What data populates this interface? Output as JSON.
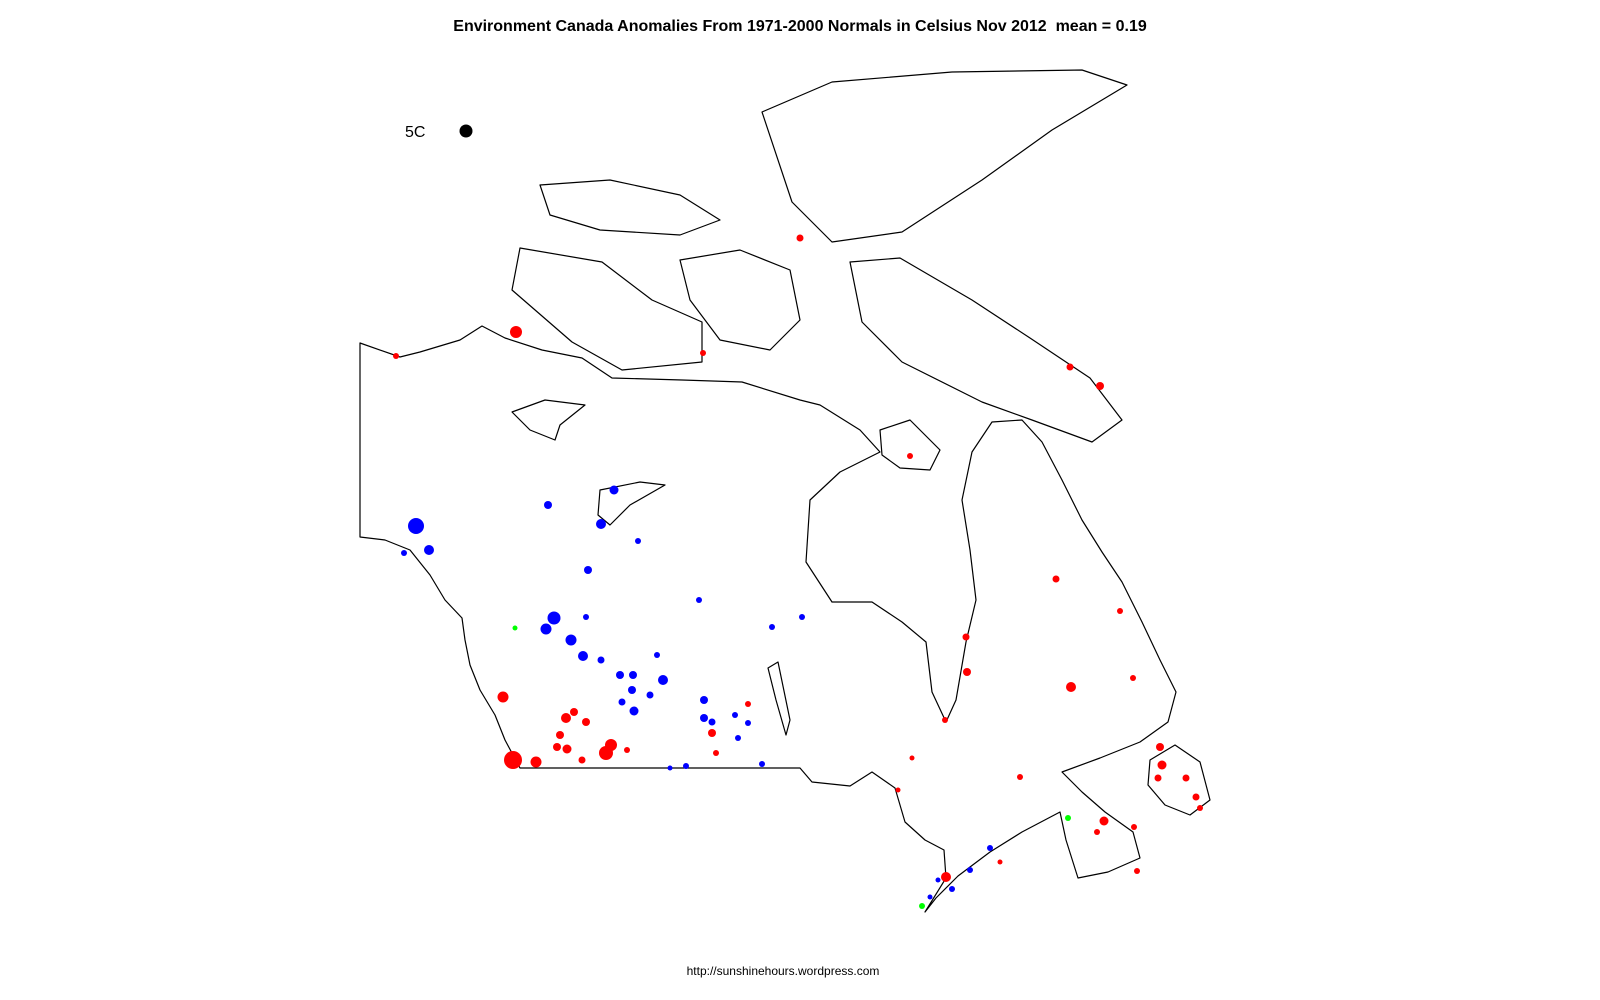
{
  "title": "Environment Canada Anomalies From 1971-2000 Normals in Celsius Nov 2012  mean = 0.19",
  "legend": {
    "label": "5C"
  },
  "footer": "http://sunshinehours.wordpress.com"
}
